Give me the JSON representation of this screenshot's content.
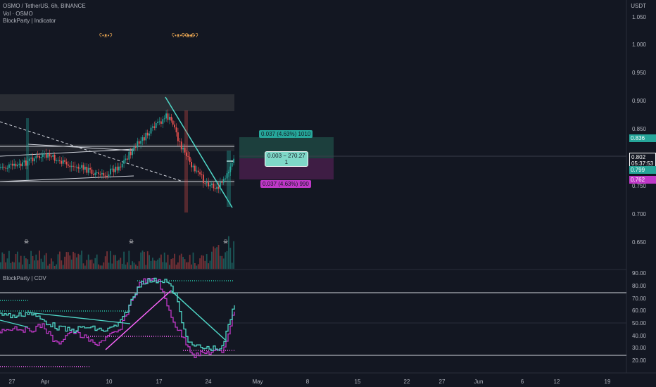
{
  "header": {
    "symbol_line": "OSMO / TetherUS, 6h, BINANCE",
    "vol_line": "Vol · OSMO",
    "indicator_line": "BlockParty | Indicator"
  },
  "currency": "USDT",
  "price_axis": [
    "1.050",
    "1.000",
    "0.950",
    "0.900",
    "0.850",
    "0.750",
    "0.700",
    "0.650"
  ],
  "price_tags": {
    "top": "0.836",
    "current": "0.802",
    "countdown": "05:37:53",
    "mid": "0.799",
    "low": "0.762"
  },
  "position": {
    "target_label": "0.037 (4.63%) 1010",
    "center_label_1": "0.003 − 270.27",
    "center_label_2": "1",
    "stop_label": "0.037 (4.63%) 990"
  },
  "cdv": {
    "title": "BlockParty | CDV",
    "axis": [
      "90.00",
      "80.00",
      "70.00",
      "60.00",
      "50.00",
      "40.00",
      "30.00",
      "20.00"
    ]
  },
  "time_axis": [
    "27",
    "Apr",
    "10",
    "17",
    "24",
    "May",
    "8",
    "15",
    "22",
    "27",
    "Jun",
    "6",
    "12",
    "19"
  ],
  "colors": {
    "background": "#131722",
    "up": "#26a69a",
    "down": "#ef5350",
    "magenta": "#c038c8",
    "teal_line": "#50d8c8",
    "pink_line": "#ff66ff"
  },
  "icons": {
    "bear": "bear-face-icon",
    "skull": "skull-icon"
  }
}
